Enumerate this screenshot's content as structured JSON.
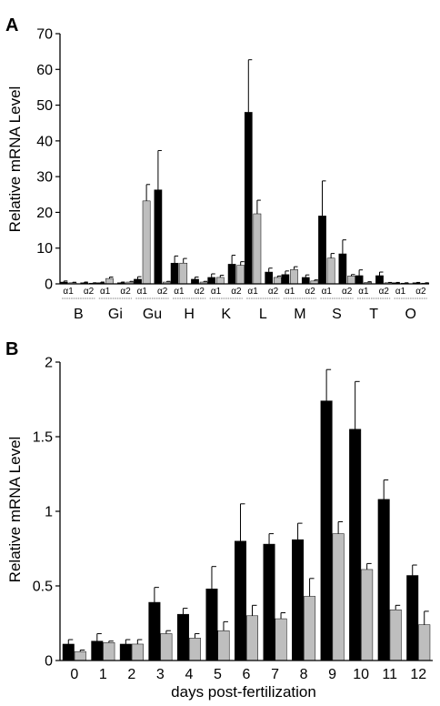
{
  "chart_data": [
    {
      "type": "bar",
      "panel_label": "A",
      "title": "",
      "xlabel": "",
      "ylabel": "Relative mRNA Level",
      "ylim": [
        0,
        70
      ],
      "yticks": [
        0,
        10,
        20,
        30,
        40,
        50,
        60,
        70
      ],
      "grid": false,
      "legend": "none",
      "categories": [
        "B",
        "Gi",
        "Gu",
        "H",
        "K",
        "L",
        "M",
        "S",
        "T",
        "O"
      ],
      "sub_labels": [
        "α1",
        "α2"
      ],
      "series": [
        {
          "color": "#000000",
          "values": [
            0.5,
            0.3,
            1.3,
            5.8,
            1.8,
            48.0,
            2.6,
            19.0,
            2.3,
            0.3
          ],
          "errors": [
            0.3,
            0.2,
            0.7,
            2.0,
            1.0,
            14.7,
            1.0,
            9.8,
            1.6,
            0.1
          ]
        },
        {
          "color": "#bebebe",
          "values": [
            0.3,
            1.5,
            23.2,
            5.8,
            1.8,
            19.6,
            4.0,
            7.2,
            0.4,
            0.2
          ],
          "errors": [
            0.15,
            0.4,
            4.6,
            1.3,
            0.6,
            3.8,
            0.8,
            1.3,
            0.2,
            0.1
          ]
        },
        {
          "color": "#000000",
          "values": [
            0.3,
            0.3,
            26.3,
            1.3,
            5.5,
            3.3,
            1.8,
            8.4,
            2.3,
            0.3
          ],
          "errors": [
            0.2,
            0.2,
            11.0,
            0.6,
            2.5,
            1.1,
            0.7,
            3.9,
            1.0,
            0.1
          ]
        },
        {
          "color": "#bebebe",
          "values": [
            0.2,
            0.5,
            0.5,
            0.5,
            5.2,
            1.8,
            0.8,
            2.2,
            0.3,
            0.2
          ],
          "errors": [
            0.1,
            0.2,
            0.2,
            0.2,
            1.0,
            0.4,
            0.3,
            0.4,
            0.1,
            0.1
          ]
        }
      ]
    },
    {
      "type": "bar",
      "panel_label": "B",
      "title": "",
      "xlabel": "days post-fertilization",
      "ylabel": "Relative mRNA Level",
      "ylim": [
        0,
        2
      ],
      "yticks": [
        "0",
        "0.5",
        "1",
        "1.5",
        "2"
      ],
      "grid": false,
      "legend": "none",
      "categories": [
        "0",
        "1",
        "2",
        "3",
        "4",
        "5",
        "6",
        "7",
        "8",
        "9",
        "10",
        "11",
        "12"
      ],
      "series": [
        {
          "color": "#000000",
          "values": [
            0.11,
            0.13,
            0.11,
            0.39,
            0.31,
            0.48,
            0.8,
            0.78,
            0.81,
            1.74,
            1.55,
            1.08,
            0.57
          ],
          "errors": [
            0.03,
            0.05,
            0.03,
            0.1,
            0.04,
            0.15,
            0.25,
            0.07,
            0.11,
            0.21,
            0.32,
            0.13,
            0.07
          ]
        },
        {
          "color": "#bebebe",
          "values": [
            0.06,
            0.12,
            0.11,
            0.18,
            0.15,
            0.2,
            0.3,
            0.28,
            0.43,
            0.85,
            0.61,
            0.34,
            0.24
          ],
          "errors": [
            0.01,
            0.01,
            0.03,
            0.02,
            0.03,
            0.06,
            0.07,
            0.04,
            0.12,
            0.08,
            0.04,
            0.03,
            0.09
          ]
        }
      ]
    }
  ]
}
